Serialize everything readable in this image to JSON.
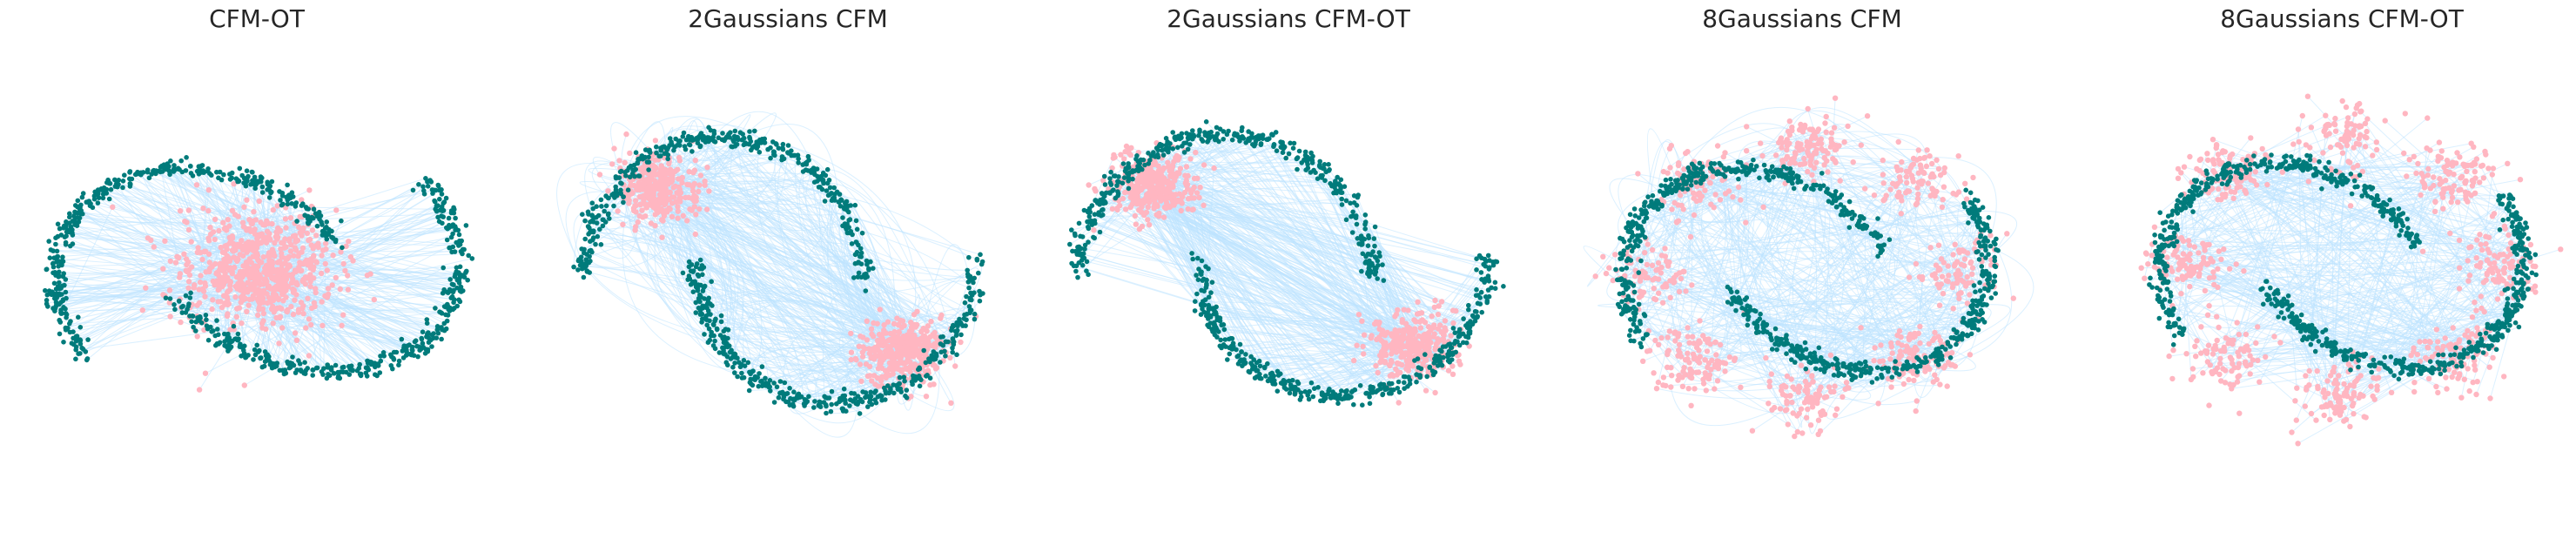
{
  "figure": {
    "panel_titles": [
      "CFM-OT",
      "2Gaussians CFM",
      "2Gaussians CFM-OT",
      "8Gaussians CFM",
      "8Gaussians CFM-OT"
    ]
  },
  "colors": {
    "source": "#ffb6c1",
    "target": "#007b7b",
    "trajectory": "#bde3ff",
    "title": "#262626",
    "background": "#ffffff"
  },
  "chart_data": [
    {
      "type": "scatter",
      "title": "CFM-OT",
      "axes": "off",
      "grid": false,
      "legend": "none",
      "source_distribution": {
        "shape": "gaussian",
        "centers": [
          [
            0.0,
            0.0
          ]
        ],
        "std": 0.16,
        "n_points": 700
      },
      "target_distribution": {
        "shape": "moons",
        "n_points": 800
      },
      "trajectories": "straight",
      "n_trajectories": 520
    },
    {
      "type": "scatter",
      "title": "2Gaussians CFM",
      "axes": "off",
      "grid": false,
      "legend": "none",
      "source_distribution": {
        "shape": "gaussian",
        "centers": [
          [
            -0.55,
            0.45
          ],
          [
            0.55,
            -0.45
          ]
        ],
        "std": 0.09,
        "n_points": 700
      },
      "target_distribution": {
        "shape": "moons",
        "n_points": 800
      },
      "trajectories": "curved",
      "n_trajectories": 520
    },
    {
      "type": "scatter",
      "title": "2Gaussians CFM-OT",
      "axes": "off",
      "grid": false,
      "legend": "none",
      "source_distribution": {
        "shape": "gaussian",
        "centers": [
          [
            -0.55,
            0.45
          ],
          [
            0.55,
            -0.45
          ]
        ],
        "std": 0.09,
        "n_points": 700
      },
      "target_distribution": {
        "shape": "moons",
        "n_points": 800
      },
      "trajectories": "straight",
      "n_trajectories": 520
    },
    {
      "type": "scatter",
      "title": "8Gaussians CFM",
      "axes": "off",
      "grid": false,
      "legend": "none",
      "source_distribution": {
        "shape": "8gaussians",
        "radius": 0.75,
        "std": 0.1,
        "n_points": 800
      },
      "target_distribution": {
        "shape": "moons",
        "n_points": 800
      },
      "trajectories": "curved",
      "n_trajectories": 520
    },
    {
      "type": "scatter",
      "title": "8Gaussians CFM-OT",
      "axes": "off",
      "grid": false,
      "legend": "none",
      "source_distribution": {
        "shape": "8gaussians",
        "radius": 0.75,
        "std": 0.1,
        "n_points": 800
      },
      "target_distribution": {
        "shape": "moons",
        "n_points": 800
      },
      "trajectories": "straight",
      "n_trajectories": 520
    }
  ]
}
